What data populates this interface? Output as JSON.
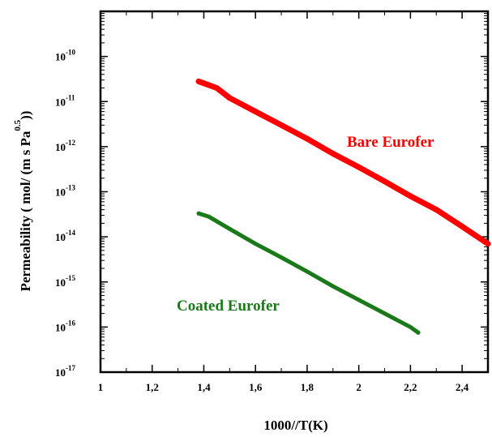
{
  "chart_data": {
    "type": "line",
    "xlabel": "1000//T(K)",
    "ylabel": {
      "main": "Permeability ( mol/ (m s Pa",
      "superscript": "0.5",
      "closing": "))"
    },
    "xlim": [
      1,
      2.5
    ],
    "ylim": [
      1e-17,
      1e-09
    ],
    "yscale": "log",
    "grid": false,
    "legend": "none",
    "x_ticks": [
      {
        "value": 1.0,
        "label": "1"
      },
      {
        "value": 1.2,
        "label": "1,2"
      },
      {
        "value": 1.4,
        "label": "1,4"
      },
      {
        "value": 1.6,
        "label": "1,6"
      },
      {
        "value": 1.8,
        "label": "1,8"
      },
      {
        "value": 2.0,
        "label": "2"
      },
      {
        "value": 2.2,
        "label": "2,2"
      },
      {
        "value": 2.4,
        "label": "2,4"
      }
    ],
    "y_ticks": [
      {
        "value": 1e-17,
        "base": "10",
        "exp": "-17"
      },
      {
        "value": 1e-16,
        "base": "10",
        "exp": "-16"
      },
      {
        "value": 1e-15,
        "base": "10",
        "exp": "-15"
      },
      {
        "value": 1e-14,
        "base": "10",
        "exp": "-14"
      },
      {
        "value": 1e-13,
        "base": "10",
        "exp": "-13"
      },
      {
        "value": 1e-12,
        "base": "10",
        "exp": "-12"
      },
      {
        "value": 1e-11,
        "base": "10",
        "exp": "-11"
      },
      {
        "value": 1e-10,
        "base": "10",
        "exp": "-10"
      }
    ],
    "series": [
      {
        "color": "#ff0000",
        "x": [
          1.38,
          1.45,
          1.5,
          1.6,
          1.7,
          1.8,
          1.9,
          2.0,
          2.1,
          2.2,
          2.3,
          2.4,
          2.5
        ],
        "y": [
          2.8e-11,
          2e-11,
          1.2e-11,
          6e-12,
          3e-12,
          1.5e-12,
          7e-13,
          3.5e-13,
          1.7e-13,
          8e-14,
          4e-14,
          1.7e-14,
          7e-15
        ]
      },
      {
        "color": "#1a7a1a",
        "x": [
          1.38,
          1.42,
          1.5,
          1.6,
          1.7,
          1.8,
          1.9,
          2.0,
          2.1,
          2.2,
          2.23
        ],
        "y": [
          3.3e-14,
          2.8e-14,
          1.5e-14,
          7e-15,
          3.5e-15,
          1.7e-15,
          8e-16,
          4e-16,
          2e-16,
          1e-16,
          7.5e-17
        ]
      }
    ],
    "annotations": [
      {
        "text": "Bare Eurofer",
        "color": "#ff0000"
      },
      {
        "text": "Coated Eurofer",
        "color": "#1a7a1a"
      }
    ]
  }
}
